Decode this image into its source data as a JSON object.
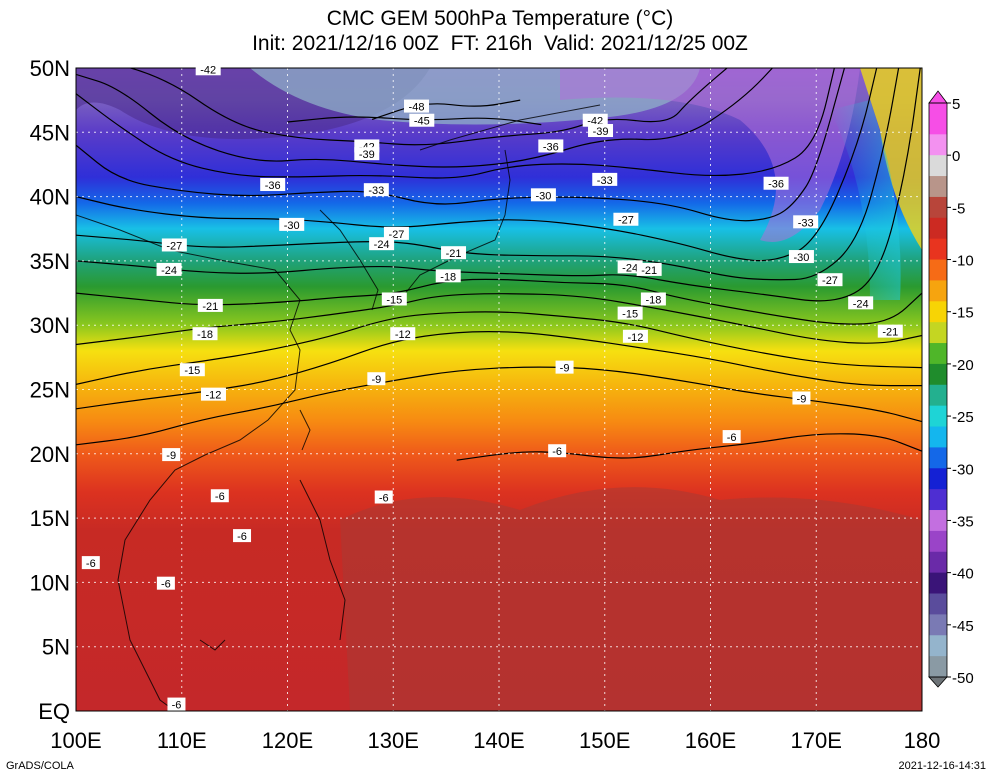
{
  "title": {
    "line1": "CMC GEM 500hPa Temperature (°C)",
    "line2": "Init: 2021/12/16 00Z  FT: 216h  Valid: 2021/12/25 00Z"
  },
  "map": {
    "lon_labels": [
      "100E",
      "110E",
      "120E",
      "130E",
      "140E",
      "150E",
      "160E",
      "170E",
      "180"
    ],
    "lat_labels": [
      "50N",
      "45N",
      "40N",
      "35N",
      "30N",
      "25N",
      "20N",
      "15N",
      "10N",
      "5N",
      "EQ"
    ],
    "lon_range": [
      100,
      180
    ],
    "lat_range": [
      0,
      50
    ],
    "gridlines": "dotted"
  },
  "contours": [
    {
      "value": -48,
      "label": "-48",
      "points": [
        [
          128,
          46
        ],
        [
          133,
          47.4
        ],
        [
          138,
          46.9
        ],
        [
          142,
          47.5
        ]
      ]
    },
    {
      "value": -45,
      "label": "-45",
      "points": [
        [
          120,
          45.8
        ],
        [
          126,
          46.3
        ],
        [
          133,
          45.9
        ],
        [
          139,
          46.2
        ],
        [
          144,
          45.6
        ]
      ]
    },
    {
      "value": -42,
      "label": "-42",
      "points": [
        [
          100,
          51
        ],
        [
          108,
          49.5
        ],
        [
          115,
          45.5
        ],
        [
          121,
          44.5
        ],
        [
          127,
          44.3
        ],
        [
          133,
          43.9
        ],
        [
          140,
          44.7
        ],
        [
          146,
          45
        ],
        [
          150,
          46.2
        ],
        [
          156,
          45.6
        ],
        [
          158,
          47.5
        ],
        [
          163,
          51
        ]
      ]
    },
    {
      "value": -39,
      "label": "-39",
      "points": [
        [
          100,
          49.5
        ],
        [
          104,
          48.5
        ],
        [
          110,
          44.5
        ],
        [
          117,
          42.6
        ],
        [
          123,
          43
        ],
        [
          129,
          42.5
        ],
        [
          136,
          42.2
        ],
        [
          143,
          42.8
        ],
        [
          150,
          44.6
        ],
        [
          157,
          44.3
        ],
        [
          163,
          47.5
        ],
        [
          167,
          51
        ]
      ]
    },
    {
      "value": -36,
      "label": "-36",
      "points": [
        [
          100,
          48
        ],
        [
          104,
          45.5
        ],
        [
          109,
          42.8
        ],
        [
          115,
          41.6
        ],
        [
          121,
          41.5
        ],
        [
          128,
          41.7
        ],
        [
          136,
          41.3
        ],
        [
          141,
          42.4
        ],
        [
          147,
          42.6
        ],
        [
          153,
          42.2
        ],
        [
          160,
          41.5
        ],
        [
          166,
          42
        ],
        [
          170,
          44
        ],
        [
          172,
          51
        ]
      ]
    },
    {
      "value": -33,
      "label": "-33",
      "points": [
        [
          100,
          44
        ],
        [
          104,
          41.3
        ],
        [
          110,
          40.4
        ],
        [
          116,
          40
        ],
        [
          122,
          40.3
        ],
        [
          128,
          40.5
        ],
        [
          134,
          39.2
        ],
        [
          140,
          39.9
        ],
        [
          148,
          40
        ],
        [
          156,
          39.5
        ],
        [
          162,
          38
        ],
        [
          166,
          38.3
        ],
        [
          168,
          39.5
        ],
        [
          170,
          42
        ],
        [
          173,
          51
        ]
      ]
    },
    {
      "value": -30,
      "label": "-30",
      "points": [
        [
          100,
          40
        ],
        [
          105,
          39
        ],
        [
          112,
          38.3
        ],
        [
          118,
          38.3
        ],
        [
          123,
          38.1
        ],
        [
          130,
          37.5
        ],
        [
          136,
          38
        ],
        [
          142,
          38.3
        ],
        [
          150,
          37.6
        ],
        [
          157,
          36.4
        ],
        [
          162,
          35.2
        ],
        [
          166,
          34.9
        ],
        [
          170,
          36.4
        ],
        [
          174,
          44
        ],
        [
          176,
          51
        ]
      ]
    },
    {
      "value": -27,
      "label": "-27",
      "points": [
        [
          100,
          37
        ],
        [
          106,
          36.6
        ],
        [
          112,
          36
        ],
        [
          119,
          36.2
        ],
        [
          126,
          36.5
        ],
        [
          131,
          36.5
        ],
        [
          137,
          35.5
        ],
        [
          144,
          35.4
        ],
        [
          150,
          35.4
        ],
        [
          156,
          34.8
        ],
        [
          162,
          33.7
        ],
        [
          166,
          33.5
        ],
        [
          170,
          33.6
        ],
        [
          174,
          36.5
        ],
        [
          176.5,
          44
        ],
        [
          178,
          51
        ]
      ]
    },
    {
      "value": -24,
      "label": "-24",
      "points": [
        [
          100,
          35
        ],
        [
          106,
          34.6
        ],
        [
          112,
          34.1
        ],
        [
          118,
          34
        ],
        [
          125,
          34.5
        ],
        [
          130,
          34.6
        ],
        [
          134,
          34.2
        ],
        [
          141,
          34
        ],
        [
          148,
          33.8
        ],
        [
          152,
          34
        ],
        [
          158,
          33.1
        ],
        [
          165,
          32.4
        ],
        [
          172,
          31.6
        ],
        [
          176,
          33.8
        ],
        [
          178.5,
          42
        ],
        [
          180,
          51
        ]
      ]
    },
    {
      "value": -21,
      "label": "-21",
      "points": [
        [
          100,
          32.5
        ],
        [
          106,
          32
        ],
        [
          112,
          31.5
        ],
        [
          120,
          31.8
        ],
        [
          125,
          32.2
        ],
        [
          130,
          32.4
        ],
        [
          135,
          33.5
        ],
        [
          140,
          33.6
        ],
        [
          146,
          33.3
        ],
        [
          152,
          33.2
        ],
        [
          157,
          32.1
        ],
        [
          165,
          30.9
        ],
        [
          172,
          30
        ],
        [
          177,
          30.2
        ],
        [
          180,
          32.5
        ]
      ]
    },
    {
      "value": -18,
      "label": "-18",
      "points": [
        [
          100,
          28.5
        ],
        [
          106,
          29.1
        ],
        [
          112,
          29.8
        ],
        [
          118,
          30.2
        ],
        [
          124,
          30.8
        ],
        [
          130,
          31.5
        ],
        [
          134,
          32.3
        ],
        [
          140,
          32.5
        ],
        [
          148,
          32.3
        ],
        [
          155,
          31.3
        ],
        [
          162,
          30.2
        ],
        [
          170,
          28.8
        ],
        [
          176,
          28.5
        ],
        [
          180,
          29.2
        ]
      ]
    },
    {
      "value": -15,
      "label": "-15",
      "points": [
        [
          100,
          25.4
        ],
        [
          106,
          26.5
        ],
        [
          112,
          27.2
        ],
        [
          118,
          28
        ],
        [
          124,
          29.1
        ],
        [
          129,
          30.4
        ],
        [
          133,
          30.9
        ],
        [
          140,
          31.1
        ],
        [
          146,
          30.7
        ],
        [
          152,
          30.2
        ],
        [
          158,
          29
        ],
        [
          165,
          27.8
        ],
        [
          172,
          26.9
        ],
        [
          180,
          26.7
        ]
      ]
    },
    {
      "value": -12,
      "label": "-12",
      "points": [
        [
          100,
          23.5
        ],
        [
          106,
          24.2
        ],
        [
          112,
          24.8
        ],
        [
          118,
          25.6
        ],
        [
          124,
          27
        ],
        [
          130,
          28.8
        ],
        [
          136,
          29.5
        ],
        [
          142,
          29.5
        ],
        [
          148,
          28.9
        ],
        [
          153,
          28.3
        ],
        [
          160,
          27.4
        ],
        [
          167,
          26.2
        ],
        [
          174,
          25.3
        ],
        [
          180,
          25.3
        ]
      ]
    },
    {
      "value": -9,
      "label": "-9",
      "points": [
        [
          100,
          20.7
        ],
        [
          106,
          21.3
        ],
        [
          112,
          22.7
        ],
        [
          118,
          23.6
        ],
        [
          124,
          24.8
        ],
        [
          130,
          25.7
        ],
        [
          136,
          26.5
        ],
        [
          143,
          26.8
        ],
        [
          150,
          26.6
        ],
        [
          158,
          25.6
        ],
        [
          164,
          24.7
        ],
        [
          170,
          24.1
        ],
        [
          176,
          23.4
        ],
        [
          180,
          22.5
        ]
      ]
    },
    {
      "value": -6,
      "label": "-6",
      "points": [
        [
          136,
          19.5
        ],
        [
          142,
          20.2
        ],
        [
          146,
          20.1
        ],
        [
          152,
          19.5
        ],
        [
          158,
          20.3
        ],
        [
          164,
          20.8
        ],
        [
          170,
          21.6
        ],
        [
          176,
          21.5
        ],
        [
          180,
          20.2
        ]
      ]
    }
  ],
  "contour_labels": [
    {
      "text": "-42",
      "lon": 112.5,
      "lat": 49.9
    },
    {
      "text": "-48",
      "lon": 132.2,
      "lat": 47.0
    },
    {
      "text": "-45",
      "lon": 132.7,
      "lat": 45.9
    },
    {
      "text": "-42",
      "lon": 127.5,
      "lat": 43.9
    },
    {
      "text": "-39",
      "lon": 127.5,
      "lat": 43.3
    },
    {
      "text": "-42",
      "lon": 149.1,
      "lat": 45.9
    },
    {
      "text": "-39",
      "lon": 149.6,
      "lat": 45.1
    },
    {
      "text": "-36",
      "lon": 144.9,
      "lat": 43.9
    },
    {
      "text": "-36",
      "lon": 118.6,
      "lat": 40.9
    },
    {
      "text": "-33",
      "lon": 128.4,
      "lat": 40.5
    },
    {
      "text": "-33",
      "lon": 150.0,
      "lat": 41.3
    },
    {
      "text": "-36",
      "lon": 166.2,
      "lat": 41.0
    },
    {
      "text": "-30",
      "lon": 144.2,
      "lat": 40.1
    },
    {
      "text": "-27",
      "lon": 152.0,
      "lat": 38.2
    },
    {
      "text": "-33",
      "lon": 169.0,
      "lat": 38.0
    },
    {
      "text": "-30",
      "lon": 120.4,
      "lat": 37.8
    },
    {
      "text": "-27",
      "lon": 130.3,
      "lat": 37.1
    },
    {
      "text": "-27",
      "lon": 109.3,
      "lat": 36.2
    },
    {
      "text": "-24",
      "lon": 128.9,
      "lat": 36.3
    },
    {
      "text": "-21",
      "lon": 135.7,
      "lat": 35.6
    },
    {
      "text": "-24",
      "lon": 108.8,
      "lat": 34.3
    },
    {
      "text": "-18",
      "lon": 135.2,
      "lat": 33.8
    },
    {
      "text": "-24",
      "lon": 152.4,
      "lat": 34.5
    },
    {
      "text": "-21",
      "lon": 154.2,
      "lat": 34.3
    },
    {
      "text": "-30",
      "lon": 168.6,
      "lat": 35.3
    },
    {
      "text": "-27",
      "lon": 171.3,
      "lat": 33.5
    },
    {
      "text": "-15",
      "lon": 130.1,
      "lat": 32.0
    },
    {
      "text": "-18",
      "lon": 154.6,
      "lat": 32.0
    },
    {
      "text": "-24",
      "lon": 174.2,
      "lat": 31.7
    },
    {
      "text": "-21",
      "lon": 112.7,
      "lat": 31.5
    },
    {
      "text": "-15",
      "lon": 152.4,
      "lat": 30.9
    },
    {
      "text": "-18",
      "lon": 112.2,
      "lat": 29.3
    },
    {
      "text": "-12",
      "lon": 130.9,
      "lat": 29.3
    },
    {
      "text": "-12",
      "lon": 152.9,
      "lat": 29.1
    },
    {
      "text": "-21",
      "lon": 177.0,
      "lat": 29.5
    },
    {
      "text": "-15",
      "lon": 111.0,
      "lat": 26.5
    },
    {
      "text": "-9",
      "lon": 128.4,
      "lat": 25.8
    },
    {
      "text": "-9",
      "lon": 146.2,
      "lat": 26.7
    },
    {
      "text": "-12",
      "lon": 113.0,
      "lat": 24.6
    },
    {
      "text": "-9",
      "lon": 168.6,
      "lat": 24.3
    },
    {
      "text": "-9",
      "lon": 109.0,
      "lat": 19.9
    },
    {
      "text": "-6",
      "lon": 145.5,
      "lat": 20.2
    },
    {
      "text": "-6",
      "lon": 162.0,
      "lat": 21.3
    },
    {
      "text": "-6",
      "lon": 113.6,
      "lat": 16.7
    },
    {
      "text": "-6",
      "lon": 129.1,
      "lat": 16.6
    },
    {
      "text": "-6",
      "lon": 115.7,
      "lat": 13.6
    },
    {
      "text": "-6",
      "lon": 101.4,
      "lat": 11.5
    },
    {
      "text": "-6",
      "lon": 108.5,
      "lat": 9.9
    },
    {
      "text": "-6",
      "lon": 109.5,
      "lat": 0.5
    }
  ],
  "colorbar": {
    "labels": [
      "5",
      "0",
      "-5",
      "-10",
      "-15",
      "-20",
      "-25",
      "-30",
      "-35",
      "-40",
      "-45",
      "-50"
    ],
    "min": -50,
    "max": 5,
    "steps": [
      {
        "v": 5,
        "color": "#f64ee6"
      },
      {
        "v": 2,
        "color": "#f391f0"
      },
      {
        "v": 0,
        "color": "#dadada"
      },
      {
        "v": -2,
        "color": "#b8958a"
      },
      {
        "v": -4,
        "color": "#b8453a"
      },
      {
        "v": -6,
        "color": "#cc2a22"
      },
      {
        "v": -8,
        "color": "#e8341f"
      },
      {
        "v": -10,
        "color": "#f66b16"
      },
      {
        "v": -12,
        "color": "#f6a40f"
      },
      {
        "v": -14,
        "color": "#f7d405"
      },
      {
        "v": -16,
        "color": "#c4d622"
      },
      {
        "v": -18,
        "color": "#4fb629"
      },
      {
        "v": -20,
        "color": "#1f8c2c"
      },
      {
        "v": -22,
        "color": "#23b08f"
      },
      {
        "v": -24,
        "color": "#1ed4d6"
      },
      {
        "v": -26,
        "color": "#14b6ee"
      },
      {
        "v": -28,
        "color": "#1468e8"
      },
      {
        "v": -30,
        "color": "#1421d4"
      },
      {
        "v": -32,
        "color": "#4e2ed2"
      },
      {
        "v": -34,
        "color": "#c36fe0"
      },
      {
        "v": -36,
        "color": "#9a44c8"
      },
      {
        "v": -38,
        "color": "#6a2aa8"
      },
      {
        "v": -40,
        "color": "#3a1478"
      },
      {
        "v": -42,
        "color": "#5a4c9c"
      },
      {
        "v": -44,
        "color": "#7a7ab4"
      },
      {
        "v": -46,
        "color": "#94b4cc"
      },
      {
        "v": -48,
        "color": "#8a9aa4"
      },
      {
        "v": -50,
        "color": "#6e7478"
      }
    ]
  },
  "footer": {
    "left": "GrADS/COLA",
    "right": "2021-12-16-14:31"
  }
}
